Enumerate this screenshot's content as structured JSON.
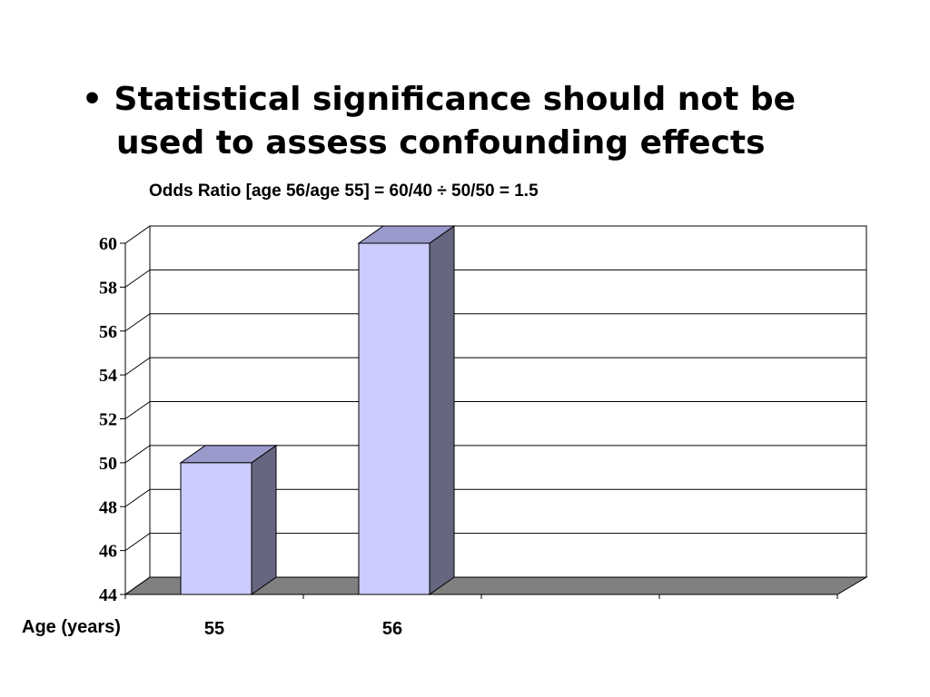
{
  "slide": {
    "title_line1": "• Statistical significance should not be",
    "title_line2": "used to assess confounding effects",
    "subtitle": "Odds Ratio [age 56/age 55] = 60/40 ÷ 50/50 = 1.5",
    "x_axis_label": "Age (years)"
  },
  "chart_data": {
    "type": "bar",
    "categories": [
      "55",
      "56"
    ],
    "values": [
      50,
      60
    ],
    "title": "",
    "xlabel": "Age (years)",
    "ylabel": "",
    "ylim": [
      44,
      60
    ],
    "yticks": [
      44,
      46,
      48,
      50,
      52,
      54,
      56,
      58,
      60
    ],
    "grid": true,
    "style": "3d",
    "colors": {
      "bar_front": "#ccccff",
      "bar_side": "#666680",
      "bar_top": "#9999cc",
      "floor": "#808080"
    }
  }
}
